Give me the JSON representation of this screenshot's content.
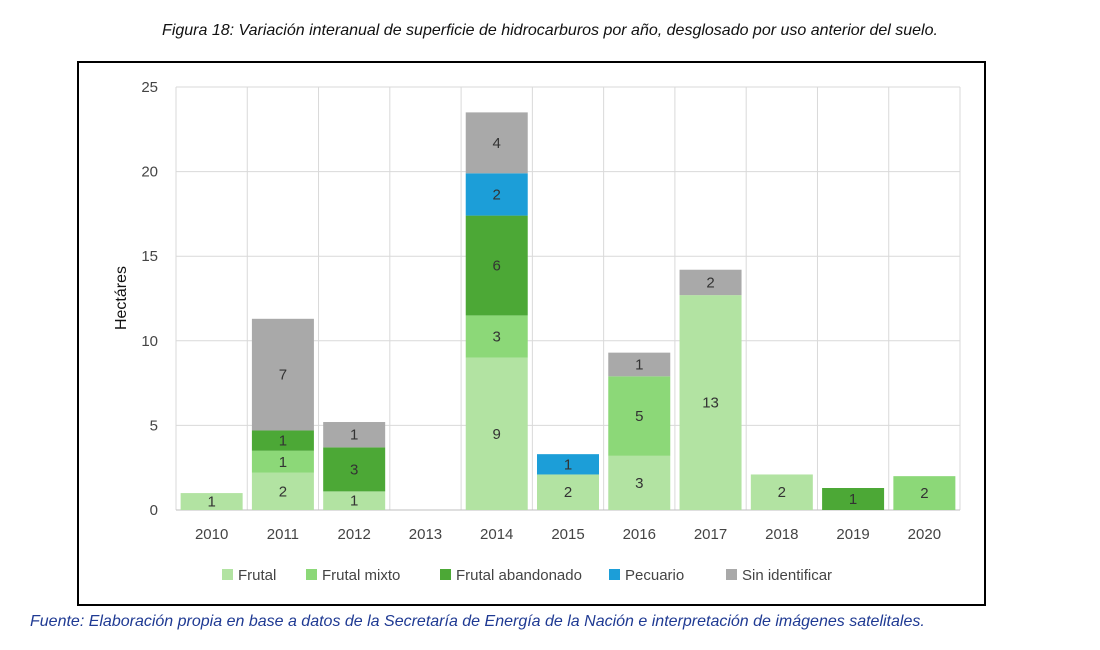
{
  "caption_top": "Figura 18: Variación interanual de superficie de hidrocarburos por año, desglosado por uso anterior del suelo.",
  "caption_bottom": "Fuente: Elaboración propia en base a datos de la Secretaría de Energía de la Nación e interpretación de imágenes satelitales.",
  "colors": {
    "Frutal": "#b2e3a2",
    "Frutal mixto": "#8cd878",
    "Frutal abandonado": "#4ca836",
    "Pecuario": "#1c9ed8",
    "Sin identificar": "#a9a9a9"
  },
  "chart_data": {
    "type": "bar",
    "stacked": true,
    "ylabel": "Hectáres",
    "ylim": [
      0,
      25
    ],
    "yticks": [
      0,
      5,
      10,
      15,
      20,
      25
    ],
    "grid": true,
    "legend_position": "bottom",
    "categories": [
      "2010",
      "2011",
      "2012",
      "2013",
      "2014",
      "2015",
      "2016",
      "2017",
      "2018",
      "2019",
      "2020"
    ],
    "series": [
      {
        "name": "Frutal",
        "values": [
          1.0,
          2.2,
          1.1,
          0,
          9.0,
          2.1,
          3.2,
          12.7,
          2.1,
          0,
          0
        ],
        "labels": [
          "1",
          "2",
          "1",
          "",
          "9",
          "2",
          "3",
          "13",
          "2",
          "",
          ""
        ]
      },
      {
        "name": "Frutal mixto",
        "values": [
          0,
          1.3,
          0,
          0,
          2.5,
          0,
          4.7,
          0,
          0,
          0,
          2.0
        ],
        "labels": [
          "",
          "1",
          "",
          "",
          "3",
          "",
          "5",
          "",
          "",
          "",
          "2"
        ]
      },
      {
        "name": "Frutal abandonado",
        "values": [
          0,
          1.2,
          2.6,
          0,
          5.9,
          0,
          0,
          0,
          0,
          1.3,
          0
        ],
        "labels": [
          "",
          "1",
          "3",
          "",
          "6",
          "",
          "",
          "",
          "",
          "1",
          ""
        ]
      },
      {
        "name": "Pecuario",
        "values": [
          0,
          0,
          0,
          0,
          2.5,
          1.2,
          0,
          0,
          0,
          0,
          0
        ],
        "labels": [
          "",
          "",
          "",
          "",
          "2",
          "1",
          "",
          "",
          "",
          "",
          ""
        ]
      },
      {
        "name": "Sin identificar",
        "values": [
          0,
          6.6,
          1.5,
          0,
          3.6,
          0,
          1.4,
          1.5,
          0,
          0,
          0
        ],
        "labels": [
          "",
          "7",
          "1",
          "",
          "4",
          "",
          "1",
          "2",
          "",
          "",
          ""
        ]
      }
    ]
  }
}
